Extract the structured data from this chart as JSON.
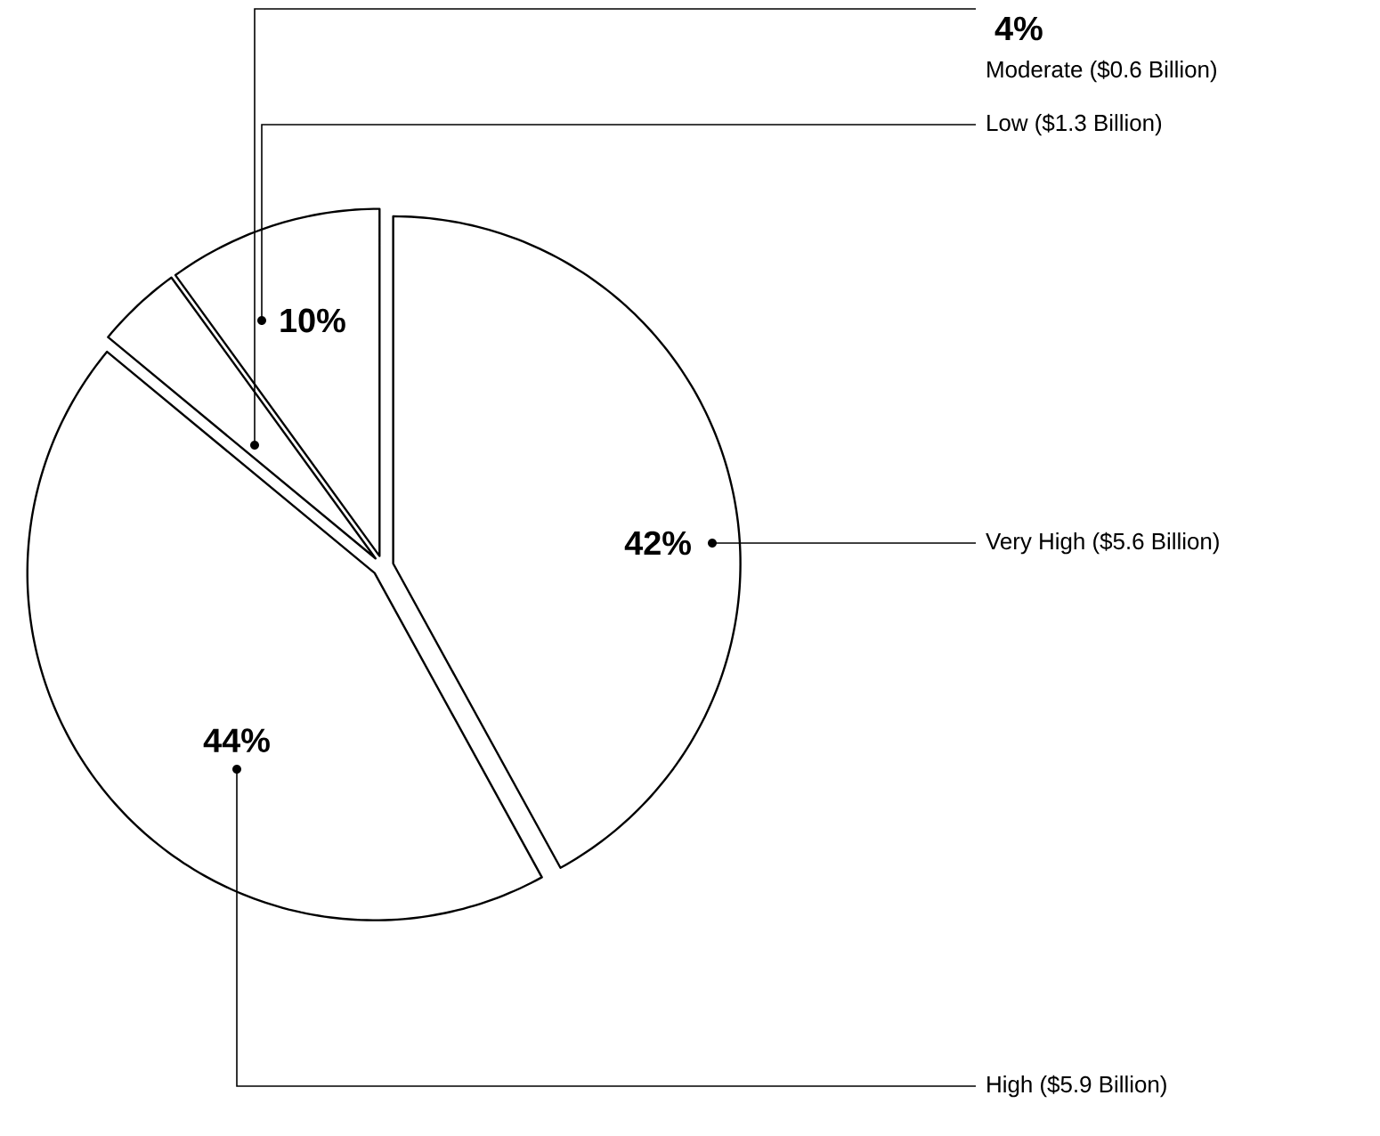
{
  "chart_data": {
    "type": "pie",
    "categories": [
      "Very High ($5.6 Billion)",
      "High ($5.9 Billion)",
      "Moderate ($0.6 Billion)",
      "Low ($1.3 Billion)"
    ],
    "values": [
      42,
      44,
      4,
      10
    ],
    "value_labels": [
      "42%",
      "44%",
      "4%",
      "10%"
    ],
    "colors": [
      "#ffffff",
      "#ffffff",
      "#ffffff",
      "#ffffff"
    ]
  }
}
